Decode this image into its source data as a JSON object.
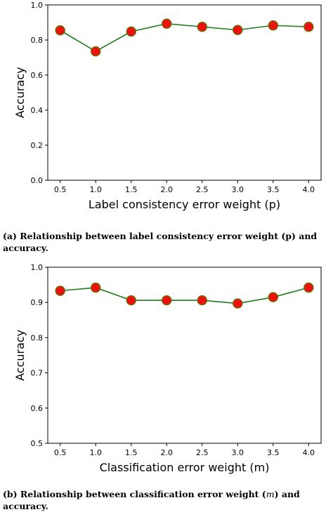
{
  "chart_data": [
    {
      "type": "line",
      "x": [
        0.5,
        1.0,
        1.5,
        2.0,
        2.5,
        3.0,
        3.5,
        4.0
      ],
      "x_tick_labels": [
        "0.5",
        "1.0",
        "1.5",
        "2.0",
        "2.5",
        "3.0",
        "3.5",
        "4.0"
      ],
      "series": [
        {
          "values": [
            0.855,
            0.735,
            0.848,
            0.893,
            0.875,
            0.857,
            0.883,
            0.875
          ]
        }
      ],
      "xlabel": "Label consistency error weight (p)",
      "ylabel": "Accuracy",
      "ylim": [
        0.0,
        1.0
      ],
      "y_ticks": [
        0.0,
        0.2,
        0.4,
        0.6,
        0.8,
        1.0
      ],
      "y_tick_labels": [
        "0.0",
        "0.2",
        "0.4",
        "0.6",
        "0.8",
        "1.0"
      ],
      "grid": false,
      "line_color": "#1a7a1a",
      "marker_color": "#ee1111",
      "marker_edge_color": "#6a6a00"
    },
    {
      "type": "line",
      "x": [
        0.5,
        1.0,
        1.5,
        2.0,
        2.5,
        3.0,
        3.5,
        4.0
      ],
      "x_tick_labels": [
        "0.5",
        "1.0",
        "1.5",
        "2.0",
        "2.5",
        "3.0",
        "3.5",
        "4.0"
      ],
      "series": [
        {
          "values": [
            0.933,
            0.942,
            0.906,
            0.906,
            0.906,
            0.897,
            0.915,
            0.942
          ]
        }
      ],
      "xlabel": "Classification error weight (m)",
      "ylabel": "Accuracy",
      "ylim": [
        0.5,
        1.0
      ],
      "y_ticks": [
        0.5,
        0.6,
        0.7,
        0.8,
        0.9,
        1.0
      ],
      "y_tick_labels": [
        "0.5",
        "0.6",
        "0.7",
        "0.8",
        "0.9",
        "1.0"
      ],
      "grid": false,
      "line_color": "#1a7a1a",
      "marker_color": "#ee1111",
      "marker_edge_color": "#6a6a00"
    }
  ],
  "captions": {
    "a": "(a) Relationship between label consistency error weight (p) and accuracy.",
    "b_prefix": "(b) Relationship between classification error weight (",
    "b_math": "m",
    "b_suffix": ") and accuracy."
  }
}
